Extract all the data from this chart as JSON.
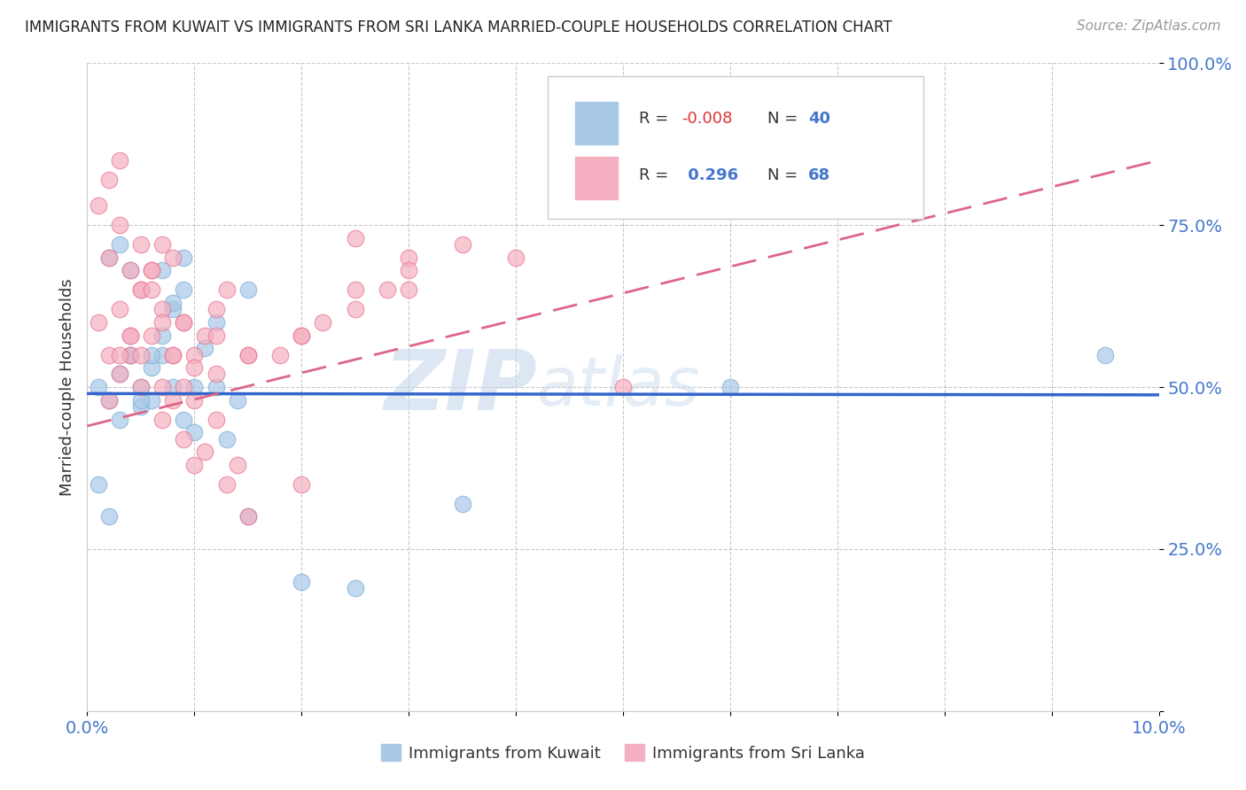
{
  "title": "IMMIGRANTS FROM KUWAIT VS IMMIGRANTS FROM SRI LANKA MARRIED-COUPLE HOUSEHOLDS CORRELATION CHART",
  "source": "Source: ZipAtlas.com",
  "ylabel": "Married-couple Households",
  "xlim": [
    0.0,
    0.1
  ],
  "ylim": [
    0.0,
    1.0
  ],
  "kuwait_color": "#a8c8e8",
  "kuwait_edge_color": "#7aadd4",
  "sri_lanka_color": "#f4b0c0",
  "sri_lanka_edge_color": "#e87090",
  "kuwait_line_color": "#3366cc",
  "sri_lanka_line_color": "#dd6688",
  "watermark_color": "#c8d8e8",
  "kuwait_R": -0.008,
  "kuwait_N": 40,
  "sri_lanka_R": 0.296,
  "sri_lanka_N": 68,
  "kuwait_line_y0": 0.49,
  "kuwait_line_y1": 0.488,
  "sri_lanka_line_y0": 0.44,
  "sri_lanka_line_y1": 0.85,
  "kuwait_scatter_x": [
    0.001,
    0.002,
    0.003,
    0.004,
    0.005,
    0.006,
    0.007,
    0.008,
    0.009,
    0.01,
    0.011,
    0.012,
    0.013,
    0.014,
    0.015,
    0.002,
    0.003,
    0.004,
    0.005,
    0.006,
    0.007,
    0.008,
    0.009,
    0.01,
    0.012,
    0.015,
    0.02,
    0.025,
    0.001,
    0.002,
    0.003,
    0.004,
    0.005,
    0.006,
    0.007,
    0.008,
    0.009,
    0.06,
    0.095,
    0.035
  ],
  "kuwait_scatter_y": [
    0.5,
    0.48,
    0.52,
    0.55,
    0.47,
    0.53,
    0.58,
    0.62,
    0.45,
    0.5,
    0.56,
    0.6,
    0.42,
    0.48,
    0.65,
    0.7,
    0.72,
    0.55,
    0.5,
    0.48,
    0.55,
    0.5,
    0.65,
    0.43,
    0.5,
    0.3,
    0.2,
    0.19,
    0.35,
    0.3,
    0.45,
    0.68,
    0.48,
    0.55,
    0.68,
    0.63,
    0.7,
    0.5,
    0.55,
    0.32
  ],
  "sri_lanka_scatter_x": [
    0.001,
    0.002,
    0.003,
    0.004,
    0.005,
    0.006,
    0.007,
    0.008,
    0.009,
    0.01,
    0.011,
    0.012,
    0.013,
    0.002,
    0.003,
    0.004,
    0.005,
    0.006,
    0.007,
    0.008,
    0.009,
    0.01,
    0.012,
    0.015,
    0.02,
    0.025,
    0.03,
    0.001,
    0.002,
    0.003,
    0.004,
    0.005,
    0.006,
    0.007,
    0.008,
    0.009,
    0.01,
    0.011,
    0.012,
    0.013,
    0.014,
    0.015,
    0.02,
    0.003,
    0.005,
    0.007,
    0.01,
    0.015,
    0.02,
    0.025,
    0.03,
    0.002,
    0.003,
    0.004,
    0.005,
    0.006,
    0.007,
    0.008,
    0.009,
    0.025,
    0.03,
    0.012,
    0.018,
    0.022,
    0.028,
    0.035,
    0.04,
    0.05
  ],
  "sri_lanka_scatter_y": [
    0.6,
    0.55,
    0.62,
    0.58,
    0.65,
    0.68,
    0.72,
    0.7,
    0.6,
    0.55,
    0.58,
    0.62,
    0.65,
    0.48,
    0.52,
    0.55,
    0.5,
    0.58,
    0.62,
    0.55,
    0.6,
    0.48,
    0.52,
    0.55,
    0.58,
    0.65,
    0.7,
    0.78,
    0.82,
    0.55,
    0.58,
    0.65,
    0.68,
    0.45,
    0.48,
    0.42,
    0.38,
    0.4,
    0.45,
    0.35,
    0.38,
    0.3,
    0.35,
    0.85,
    0.55,
    0.5,
    0.53,
    0.55,
    0.58,
    0.62,
    0.65,
    0.7,
    0.75,
    0.68,
    0.72,
    0.65,
    0.6,
    0.55,
    0.5,
    0.73,
    0.68,
    0.58,
    0.55,
    0.6,
    0.65,
    0.72,
    0.7,
    0.5
  ]
}
